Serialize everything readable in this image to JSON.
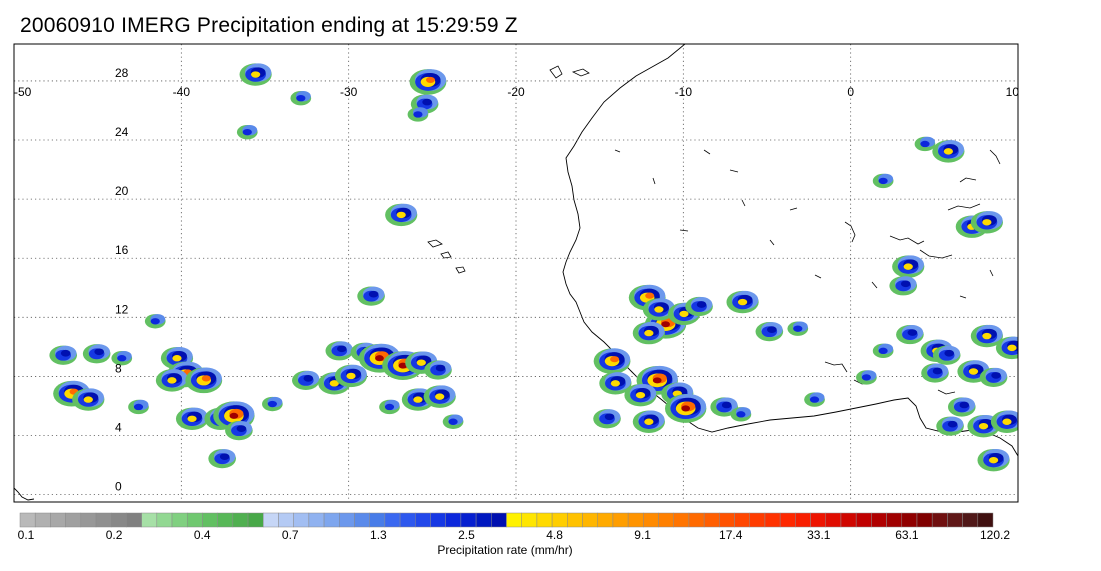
{
  "title": "20060910 IMERG Precipitation ending at 15:29:59 Z",
  "map": {
    "lon_range": [
      -50,
      10
    ],
    "lat_range": [
      -0.5,
      30.5
    ],
    "lon_ticks": [
      -50,
      -40,
      -30,
      -20,
      -10,
      0,
      10
    ],
    "lon_tick_labels": [
      "-50",
      "-40",
      "-30",
      "-20",
      "-10",
      "0",
      "10"
    ],
    "lat_ticks": [
      0,
      4,
      8,
      12,
      16,
      20,
      24,
      28
    ],
    "lat_tick_labels": [
      "0",
      "4",
      "8",
      "12",
      "16",
      "20",
      "24",
      "28"
    ],
    "gridlines": "dotted"
  },
  "colorbar": {
    "title": "Precipitation rate (mm/hr)",
    "labels": [
      "0.1",
      "0.2",
      "0.4",
      "0.7",
      "1.3",
      "2.5",
      "4.8",
      "9.1",
      "17.4",
      "33.1",
      "63.1",
      "120.2"
    ],
    "colors": [
      "#b9b9b9",
      "#b0b0b0",
      "#a8a8a8",
      "#a0a0a0",
      "#989898",
      "#909090",
      "#888888",
      "#808080",
      "#a6e0a6",
      "#92d892",
      "#80d080",
      "#70c870",
      "#62c062",
      "#58b858",
      "#50b050",
      "#48a848",
      "#c6d6f6",
      "#b4caf4",
      "#a2bef2",
      "#90b2f0",
      "#7ea6ee",
      "#6c98ec",
      "#5a8aea",
      "#487ce8",
      "#3a68f0",
      "#2e58ee",
      "#2248ea",
      "#1638e4",
      "#0c28dc",
      "#0620d0",
      "#0018c0",
      "#0010b0",
      "#fff200",
      "#ffe600",
      "#ffda00",
      "#ffce00",
      "#ffc200",
      "#ffb600",
      "#ffaa00",
      "#ff9e00",
      "#ff9400",
      "#ff8a00",
      "#ff8000",
      "#ff7400",
      "#ff6a00",
      "#ff5e00",
      "#ff5200",
      "#ff4600",
      "#ff3c00",
      "#ff3200",
      "#ff2800",
      "#f81e00",
      "#ee1400",
      "#e00c00",
      "#d00600",
      "#c00000",
      "#b00000",
      "#a00000",
      "#900000",
      "#800000",
      "#701010",
      "#601818",
      "#501818",
      "#401010"
    ]
  },
  "precip_cells": [
    {
      "lon": -46.5,
      "lat": 6.9,
      "level": 4
    },
    {
      "lon": -45.5,
      "lat": 6.5,
      "level": 3
    },
    {
      "lon": -42.5,
      "lat": 6.0,
      "level": 1
    },
    {
      "lon": -47.0,
      "lat": 9.5,
      "level": 2
    },
    {
      "lon": -45.0,
      "lat": 9.6,
      "level": 2
    },
    {
      "lon": -43.5,
      "lat": 9.3,
      "level": 1
    },
    {
      "lon": -40.2,
      "lat": 9.3,
      "level": 3
    },
    {
      "lon": -39.7,
      "lat": 8.2,
      "level": 4
    },
    {
      "lon": -40.5,
      "lat": 7.8,
      "level": 3
    },
    {
      "lon": -38.6,
      "lat": 7.8,
      "level": 4
    },
    {
      "lon": -39.3,
      "lat": 5.2,
      "level": 3
    },
    {
      "lon": -37.6,
      "lat": 5.2,
      "level": 3
    },
    {
      "lon": -36.8,
      "lat": 5.4,
      "level": 5
    },
    {
      "lon": -36.5,
      "lat": 4.4,
      "level": 2
    },
    {
      "lon": -37.5,
      "lat": 2.5,
      "level": 2
    },
    {
      "lon": -34.5,
      "lat": 6.2,
      "level": 1
    },
    {
      "lon": -32.5,
      "lat": 7.8,
      "level": 2
    },
    {
      "lon": -30.8,
      "lat": 7.6,
      "level": 3
    },
    {
      "lon": -29.8,
      "lat": 8.1,
      "level": 3
    },
    {
      "lon": -30.5,
      "lat": 9.8,
      "level": 2
    },
    {
      "lon": -29.0,
      "lat": 9.7,
      "level": 2
    },
    {
      "lon": -28.1,
      "lat": 9.3,
      "level": 5
    },
    {
      "lon": -26.7,
      "lat": 8.8,
      "level": 5
    },
    {
      "lon": -25.6,
      "lat": 9.0,
      "level": 3
    },
    {
      "lon": -24.6,
      "lat": 8.5,
      "level": 2
    },
    {
      "lon": -25.8,
      "lat": 6.5,
      "level": 3
    },
    {
      "lon": -24.5,
      "lat": 6.7,
      "level": 3
    },
    {
      "lon": -23.7,
      "lat": 5.0,
      "level": 1
    },
    {
      "lon": -27.5,
      "lat": 6.0,
      "level": 1
    },
    {
      "lon": -26.8,
      "lat": 19.0,
      "level": 3
    },
    {
      "lon": -28.6,
      "lat": 13.5,
      "level": 2
    },
    {
      "lon": -25.2,
      "lat": 28.0,
      "level": 4
    },
    {
      "lon": -25.4,
      "lat": 26.5,
      "level": 2
    },
    {
      "lon": -25.8,
      "lat": 25.8,
      "level": 1
    },
    {
      "lon": -35.5,
      "lat": 28.5,
      "level": 3
    },
    {
      "lon": -32.8,
      "lat": 26.9,
      "level": 1
    },
    {
      "lon": -36.0,
      "lat": 24.6,
      "level": 1
    },
    {
      "lon": -41.5,
      "lat": 11.8,
      "level": 1
    },
    {
      "lon": -12.1,
      "lat": 13.4,
      "level": 4
    },
    {
      "lon": -11.0,
      "lat": 11.6,
      "level": 5
    },
    {
      "lon": -12.0,
      "lat": 11.0,
      "level": 3
    },
    {
      "lon": -11.4,
      "lat": 12.6,
      "level": 3
    },
    {
      "lon": -9.9,
      "lat": 12.3,
      "level": 3
    },
    {
      "lon": -9.0,
      "lat": 12.8,
      "level": 2
    },
    {
      "lon": -6.4,
      "lat": 13.1,
      "level": 3
    },
    {
      "lon": -4.8,
      "lat": 11.1,
      "level": 2
    },
    {
      "lon": -14.2,
      "lat": 9.1,
      "level": 4
    },
    {
      "lon": -14.0,
      "lat": 7.6,
      "level": 3
    },
    {
      "lon": -11.5,
      "lat": 7.8,
      "level": 5
    },
    {
      "lon": -12.5,
      "lat": 6.8,
      "level": 3
    },
    {
      "lon": -10.3,
      "lat": 6.9,
      "level": 3
    },
    {
      "lon": -9.8,
      "lat": 5.9,
      "level": 5
    },
    {
      "lon": -12.0,
      "lat": 5.0,
      "level": 3
    },
    {
      "lon": -14.5,
      "lat": 5.2,
      "level": 2
    },
    {
      "lon": -7.5,
      "lat": 6.0,
      "level": 2
    },
    {
      "lon": -6.5,
      "lat": 5.5,
      "level": 1
    },
    {
      "lon": -2.1,
      "lat": 6.5,
      "level": 1
    },
    {
      "lon": 3.5,
      "lat": 15.5,
      "level": 3
    },
    {
      "lon": 3.2,
      "lat": 14.2,
      "level": 2
    },
    {
      "lon": 3.6,
      "lat": 10.9,
      "level": 2
    },
    {
      "lon": 5.2,
      "lat": 9.8,
      "level": 3
    },
    {
      "lon": 5.8,
      "lat": 9.5,
      "level": 2
    },
    {
      "lon": 5.1,
      "lat": 8.3,
      "level": 2
    },
    {
      "lon": 7.4,
      "lat": 8.4,
      "level": 3
    },
    {
      "lon": 8.6,
      "lat": 8.0,
      "level": 2
    },
    {
      "lon": 8.2,
      "lat": 10.8,
      "level": 3
    },
    {
      "lon": 9.7,
      "lat": 10.0,
      "level": 3
    },
    {
      "lon": 7.3,
      "lat": 18.2,
      "level": 3
    },
    {
      "lon": 8.2,
      "lat": 18.5,
      "level": 3
    },
    {
      "lon": 5.9,
      "lat": 23.3,
      "level": 3
    },
    {
      "lon": 4.5,
      "lat": 23.8,
      "level": 1
    },
    {
      "lon": 2.0,
      "lat": 21.3,
      "level": 1
    },
    {
      "lon": 6.7,
      "lat": 6.0,
      "level": 2
    },
    {
      "lon": 6.0,
      "lat": 4.7,
      "level": 2
    },
    {
      "lon": 8.0,
      "lat": 4.7,
      "level": 3
    },
    {
      "lon": 9.4,
      "lat": 5.0,
      "level": 3
    },
    {
      "lon": 8.6,
      "lat": 2.4,
      "level": 3
    },
    {
      "lon": 2.0,
      "lat": 9.8,
      "level": 1
    },
    {
      "lon": 1.0,
      "lat": 8.0,
      "level": 1
    },
    {
      "lon": -3.1,
      "lat": 11.3,
      "level": 1
    }
  ]
}
